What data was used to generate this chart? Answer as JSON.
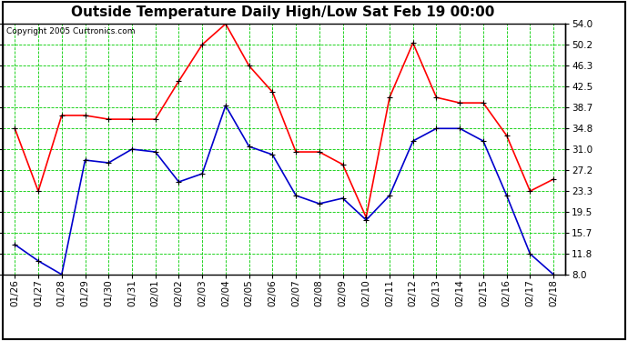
{
  "title": "Outside Temperature Daily High/Low Sat Feb 19 00:00",
  "copyright": "Copyright 2005 Curtronics.com",
  "x_labels": [
    "01/26",
    "01/27",
    "01/28",
    "01/29",
    "01/30",
    "01/31",
    "02/01",
    "02/02",
    "02/03",
    "02/04",
    "02/05",
    "02/06",
    "02/07",
    "02/08",
    "02/09",
    "02/10",
    "02/11",
    "02/12",
    "02/13",
    "02/14",
    "02/15",
    "02/16",
    "02/17",
    "02/18"
  ],
  "high_values": [
    34.8,
    23.3,
    37.2,
    37.2,
    36.5,
    36.5,
    36.5,
    43.5,
    50.2,
    54.0,
    46.3,
    41.5,
    30.5,
    30.5,
    28.2,
    18.5,
    40.5,
    50.5,
    40.5,
    39.5,
    39.5,
    33.5,
    23.3,
    25.5
  ],
  "low_values": [
    13.5,
    10.5,
    8.0,
    29.0,
    28.5,
    31.0,
    30.5,
    25.0,
    26.5,
    39.0,
    31.5,
    30.0,
    22.5,
    21.0,
    22.0,
    18.0,
    22.5,
    32.5,
    34.8,
    34.8,
    32.5,
    22.5,
    11.8,
    8.0
  ],
  "high_color": "#ff0000",
  "low_color": "#0000cc",
  "bg_color": "#ffffff",
  "grid_color": "#00cc00",
  "border_color": "#000000",
  "y_ticks": [
    8.0,
    11.8,
    15.7,
    19.5,
    23.3,
    27.2,
    31.0,
    34.8,
    38.7,
    42.5,
    46.3,
    50.2,
    54.0
  ],
  "title_fontsize": 11,
  "copyright_fontsize": 6.5,
  "tick_fontsize": 7.5,
  "marker_size": 5,
  "line_width": 1.2
}
